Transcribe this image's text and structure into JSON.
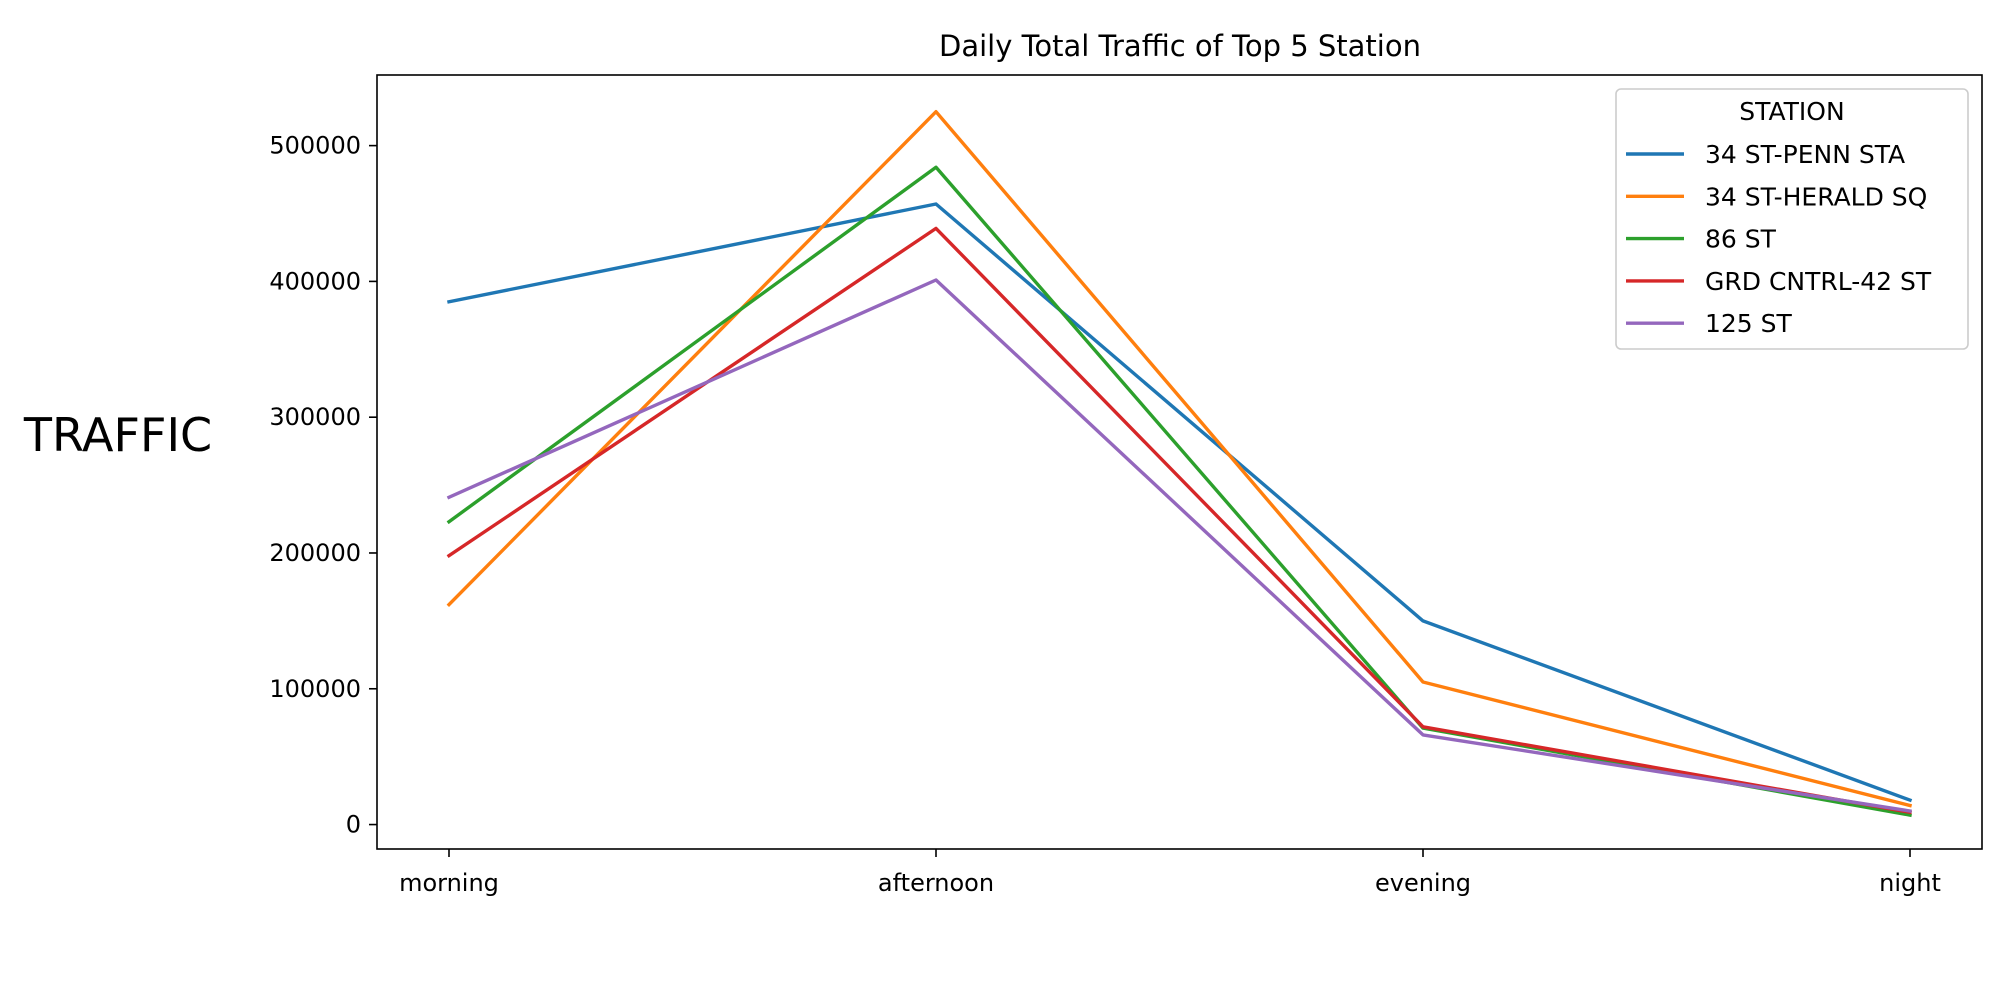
{
  "chart_data": {
    "type": "line",
    "title": "Daily Total Traffic of Top 5 Station",
    "xlabel": "",
    "ylabel": "TRAFFIC",
    "categories": [
      "morning",
      "afternoon",
      "evening",
      "night"
    ],
    "ylim": [
      -18000,
      552000
    ],
    "yticks": [
      0,
      100000,
      200000,
      300000,
      400000,
      500000
    ],
    "ytick_labels": [
      "0",
      "100000",
      "200000",
      "300000",
      "400000",
      "500000"
    ],
    "grid": false,
    "legend": {
      "title": "STATION",
      "placement": "top-right"
    },
    "series": [
      {
        "name": "34 ST-PENN STA",
        "color": "#1f77b4",
        "values": [
          385000,
          457000,
          150000,
          18000
        ]
      },
      {
        "name": "34 ST-HERALD SQ",
        "color": "#ff7f0e",
        "values": [
          162000,
          525000,
          105000,
          14000
        ]
      },
      {
        "name": "86 ST",
        "color": "#2ca02c",
        "values": [
          223000,
          484000,
          71000,
          7000
        ]
      },
      {
        "name": "GRD CNTRL-42 ST",
        "color": "#d62728",
        "values": [
          198000,
          439000,
          72000,
          9000
        ]
      },
      {
        "name": "125 ST",
        "color": "#9467bd",
        "values": [
          241000,
          401000,
          66000,
          10000
        ]
      }
    ]
  }
}
